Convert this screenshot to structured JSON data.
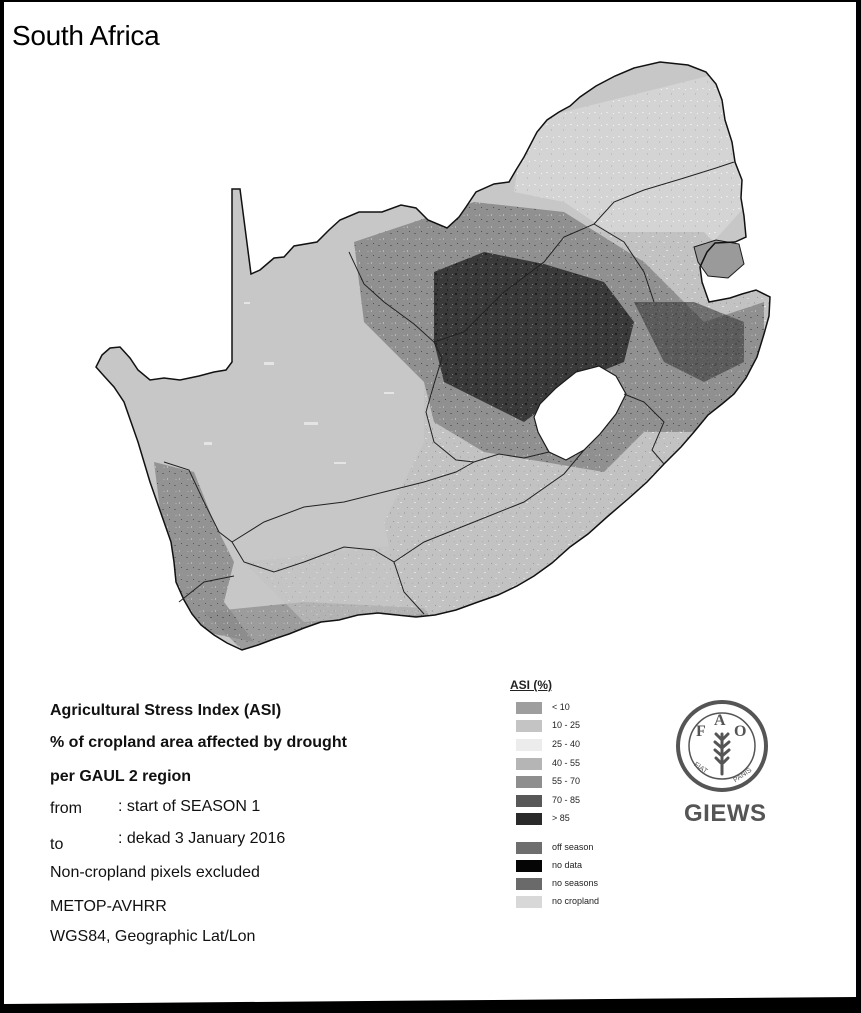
{
  "title": "South Africa",
  "colors": {
    "background": "#ffffff",
    "frame": "#000000",
    "country_fill": "#c6c6c6",
    "boundary": "#1a1a1a",
    "lesotho": "#ffffff",
    "stress_dark": "#2a2a2a",
    "stress_mid": "#6b6b6b"
  },
  "info": {
    "line1": "Agricultural Stress Index (ASI)",
    "line2": "% of cropland area affected by drought",
    "line3": "per GAUL 2 region",
    "from_label": "from",
    "from_value": ": start of SEASON 1",
    "to_label": "to",
    "to_value": ": dekad 3 January 2016",
    "line6": "Non-cropland pixels excluded",
    "line7": "METOP-AVHRR",
    "line8": "WGS84, Geographic Lat/Lon"
  },
  "legend": {
    "title": "ASI (%)",
    "classes": [
      {
        "label": "< 10",
        "color": "#9e9e9e"
      },
      {
        "label": "10 - 25",
        "color": "#c4c4c4"
      },
      {
        "label": "25 - 40",
        "color": "#ececec"
      },
      {
        "label": "40 - 55",
        "color": "#b5b5b5"
      },
      {
        "label": "55 - 70",
        "color": "#8e8e8e"
      },
      {
        "label": "70 - 85",
        "color": "#585858"
      },
      {
        "label": "> 85",
        "color": "#2a2a2a"
      }
    ],
    "other": [
      {
        "label": "off season",
        "color": "#6e6e6e"
      },
      {
        "label": "no data",
        "color": "#050505"
      },
      {
        "label": "no seasons",
        "color": "#6a6a6a"
      },
      {
        "label": "no cropland",
        "color": "#d8d8d8"
      }
    ]
  },
  "logo": {
    "letters": [
      "F",
      "A",
      "O"
    ],
    "ring_left": "FIAT",
    "ring_right": "PANIS",
    "brand": "GIEWS"
  }
}
